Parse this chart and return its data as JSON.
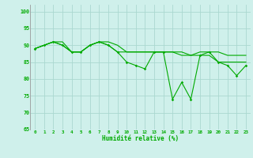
{
  "x": [
    0,
    1,
    2,
    3,
    4,
    5,
    6,
    7,
    8,
    9,
    10,
    11,
    12,
    13,
    14,
    15,
    16,
    17,
    18,
    19,
    20,
    21,
    22,
    23
  ],
  "series1": [
    89,
    90,
    91,
    90,
    88,
    88,
    90,
    91,
    90,
    88,
    85,
    84,
    83,
    88,
    88,
    74,
    79,
    74,
    87,
    88,
    85,
    84,
    81,
    84
  ],
  "series2": [
    89,
    90,
    91,
    90,
    88,
    88,
    90,
    91,
    90,
    88,
    88,
    88,
    88,
    88,
    88,
    88,
    87,
    87,
    87,
    87,
    85,
    85,
    85,
    85
  ],
  "series3": [
    89,
    90,
    91,
    91,
    88,
    88,
    90,
    91,
    91,
    90,
    88,
    88,
    88,
    88,
    88,
    88,
    88,
    87,
    88,
    88,
    88,
    87,
    87,
    87
  ],
  "background_color": "#cff0eb",
  "grid_color": "#aad8d0",
  "line_color": "#00aa00",
  "xlabel": "Humidité relative (%)",
  "ylim": [
    65,
    102
  ],
  "yticks": [
    65,
    70,
    75,
    80,
    85,
    90,
    95,
    100
  ],
  "xlim": [
    -0.5,
    23.5
  ]
}
